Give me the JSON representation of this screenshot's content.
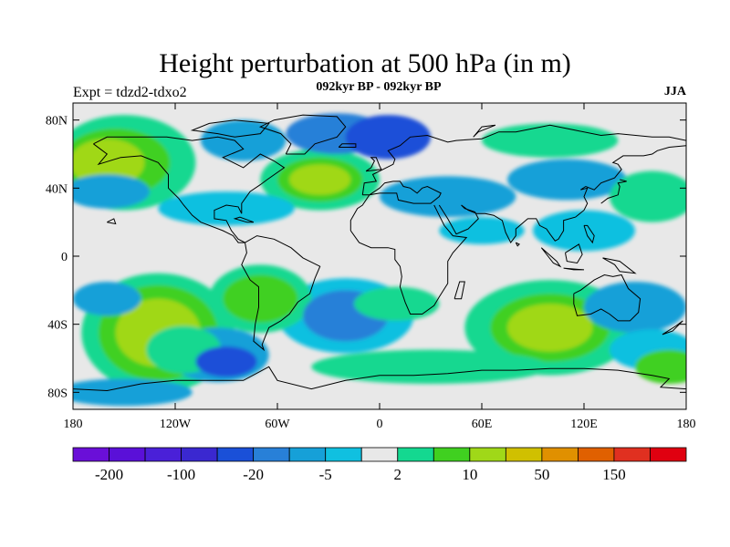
{
  "header": {
    "title": "Height perturbation at 500 hPa (in m)",
    "left": "Expt = tdzd2-tdxo2",
    "center": "092kyr BP - 092kyr BP",
    "right": "JJA"
  },
  "map": {
    "projection": "cylindrical-equidistant",
    "lon_range": [
      -180,
      180
    ],
    "lat_range": [
      -90,
      90
    ],
    "lat_ticks": [
      {
        "value": 80,
        "label": "80N"
      },
      {
        "value": 40,
        "label": "40N"
      },
      {
        "value": 0,
        "label": "0"
      },
      {
        "value": -40,
        "label": "40S"
      },
      {
        "value": -80,
        "label": "80S"
      }
    ],
    "lon_ticks": [
      {
        "value": -180,
        "label": "180"
      },
      {
        "value": -120,
        "label": "120W"
      },
      {
        "value": -60,
        "label": "60W"
      },
      {
        "value": 0,
        "label": "0"
      },
      {
        "value": 60,
        "label": "60E"
      },
      {
        "value": 120,
        "label": "120E"
      },
      {
        "value": 180,
        "label": "180"
      }
    ],
    "neutral_color": "#e8e8e8",
    "anomalies": [
      {
        "lon": -130,
        "lat": -45,
        "rlon": 25,
        "rlat": 20,
        "level": 11
      },
      {
        "lon": -130,
        "lat": -45,
        "rlon": 35,
        "rlat": 28,
        "level": 10
      },
      {
        "lon": -130,
        "lat": -45,
        "rlon": 45,
        "rlat": 35,
        "level": 9
      },
      {
        "lon": -115,
        "lat": -55,
        "rlon": 22,
        "rlat": 14,
        "level": 9
      },
      {
        "lon": -90,
        "lat": -62,
        "rlon": 18,
        "rlat": 9,
        "level": 4
      },
      {
        "lon": -95,
        "lat": -58,
        "rlon": 30,
        "rlat": 16,
        "level": 6
      },
      {
        "lon": -160,
        "lat": -25,
        "rlon": 20,
        "rlat": 10,
        "level": 6
      },
      {
        "lon": -70,
        "lat": -25,
        "rlon": 22,
        "rlat": 14,
        "level": 10
      },
      {
        "lon": -70,
        "lat": -25,
        "rlon": 30,
        "rlat": 20,
        "level": 9
      },
      {
        "lon": -20,
        "lat": -35,
        "rlon": 25,
        "rlat": 15,
        "level": 5
      },
      {
        "lon": -20,
        "lat": -35,
        "rlon": 40,
        "rlat": 22,
        "level": 7
      },
      {
        "lon": 10,
        "lat": -28,
        "rlon": 25,
        "rlat": 10,
        "level": 9
      },
      {
        "lon": 100,
        "lat": -42,
        "rlon": 25,
        "rlat": 14,
        "level": 11
      },
      {
        "lon": 100,
        "lat": -42,
        "rlon": 35,
        "rlat": 20,
        "level": 10
      },
      {
        "lon": 100,
        "lat": -42,
        "rlon": 50,
        "rlat": 28,
        "level": 9
      },
      {
        "lon": 150,
        "lat": -30,
        "rlon": 30,
        "rlat": 15,
        "level": 6
      },
      {
        "lon": 160,
        "lat": -55,
        "rlon": 25,
        "rlat": 12,
        "level": 7
      },
      {
        "lon": 170,
        "lat": -65,
        "rlon": 20,
        "rlat": 10,
        "level": 10
      },
      {
        "lon": 30,
        "lat": -65,
        "rlon": 70,
        "rlat": 10,
        "level": 9
      },
      {
        "lon": -150,
        "lat": -80,
        "rlon": 40,
        "rlat": 8,
        "level": 6
      },
      {
        "lon": -160,
        "lat": 55,
        "rlon": 22,
        "rlat": 14,
        "level": 11
      },
      {
        "lon": -155,
        "lat": 55,
        "rlon": 32,
        "rlat": 20,
        "level": 10
      },
      {
        "lon": -150,
        "lat": 55,
        "rlon": 42,
        "rlat": 28,
        "level": 9
      },
      {
        "lon": -160,
        "lat": 38,
        "rlon": 25,
        "rlat": 10,
        "level": 6
      },
      {
        "lon": -80,
        "lat": 68,
        "rlon": 25,
        "rlat": 12,
        "level": 6
      },
      {
        "lon": -25,
        "lat": 72,
        "rlon": 30,
        "rlat": 12,
        "level": 5
      },
      {
        "lon": 5,
        "lat": 70,
        "rlon": 25,
        "rlat": 13,
        "level": 4
      },
      {
        "lon": -35,
        "lat": 45,
        "rlon": 18,
        "rlat": 9,
        "level": 11
      },
      {
        "lon": -35,
        "lat": 45,
        "rlon": 25,
        "rlat": 13,
        "level": 10
      },
      {
        "lon": -35,
        "lat": 45,
        "rlon": 35,
        "rlat": 18,
        "level": 9
      },
      {
        "lon": -90,
        "lat": 28,
        "rlon": 40,
        "rlat": 10,
        "level": 7
      },
      {
        "lon": 40,
        "lat": 35,
        "rlon": 40,
        "rlat": 12,
        "level": 6
      },
      {
        "lon": 100,
        "lat": 68,
        "rlon": 40,
        "rlat": 10,
        "level": 9
      },
      {
        "lon": 110,
        "lat": 45,
        "rlon": 35,
        "rlat": 12,
        "level": 6
      },
      {
        "lon": 160,
        "lat": 35,
        "rlon": 25,
        "rlat": 15,
        "level": 9
      },
      {
        "lon": 120,
        "lat": 15,
        "rlon": 30,
        "rlat": 12,
        "level": 7
      },
      {
        "lon": 60,
        "lat": 15,
        "rlon": 25,
        "rlat": 8,
        "level": 7
      }
    ]
  },
  "colorbar": {
    "colors": [
      "#6a0fd8",
      "#5a10d8",
      "#4a20d8",
      "#3a28d0",
      "#1a50d8",
      "#2880d8",
      "#16a0d8",
      "#10c0e0",
      "#e8e8e8",
      "#14d890",
      "#40d020",
      "#a0d818",
      "#d0c000",
      "#e09000",
      "#e06000",
      "#e03020",
      "#e00010"
    ],
    "labels": [
      {
        "boundary": 1,
        "text": "-200"
      },
      {
        "boundary": 3,
        "text": "-100"
      },
      {
        "boundary": 5,
        "text": "-20"
      },
      {
        "boundary": 7,
        "text": "-5"
      },
      {
        "boundary": 9,
        "text": "2"
      },
      {
        "boundary": 11,
        "text": "10"
      },
      {
        "boundary": 13,
        "text": "50"
      },
      {
        "boundary": 15,
        "text": "150"
      }
    ]
  }
}
